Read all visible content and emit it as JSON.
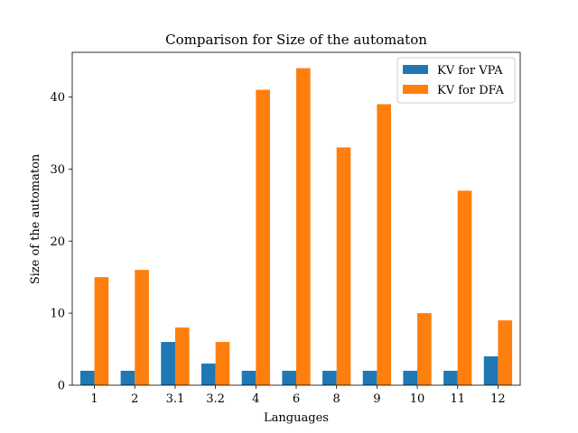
{
  "chart_data": {
    "type": "bar",
    "title": "Comparison for Size of the automaton",
    "xlabel": "Languages",
    "ylabel": "Size of the automaton",
    "categories": [
      "1",
      "2",
      "3.1",
      "3.2",
      "4",
      "6",
      "8",
      "9",
      "10",
      "11",
      "12"
    ],
    "series": [
      {
        "name": "KV for VPA",
        "color": "#1f77b4",
        "values": [
          2,
          2,
          6,
          3,
          2,
          2,
          2,
          2,
          2,
          2,
          4
        ]
      },
      {
        "name": "KV for DFA",
        "color": "#ff7f0e",
        "values": [
          15,
          16,
          8,
          6,
          41,
          44,
          33,
          39,
          10,
          27,
          9
        ]
      }
    ],
    "ylim": [
      0,
      46.2
    ],
    "yticks": [
      0,
      10,
      20,
      30,
      40
    ],
    "grid": false,
    "legend_position": "top-right"
  }
}
